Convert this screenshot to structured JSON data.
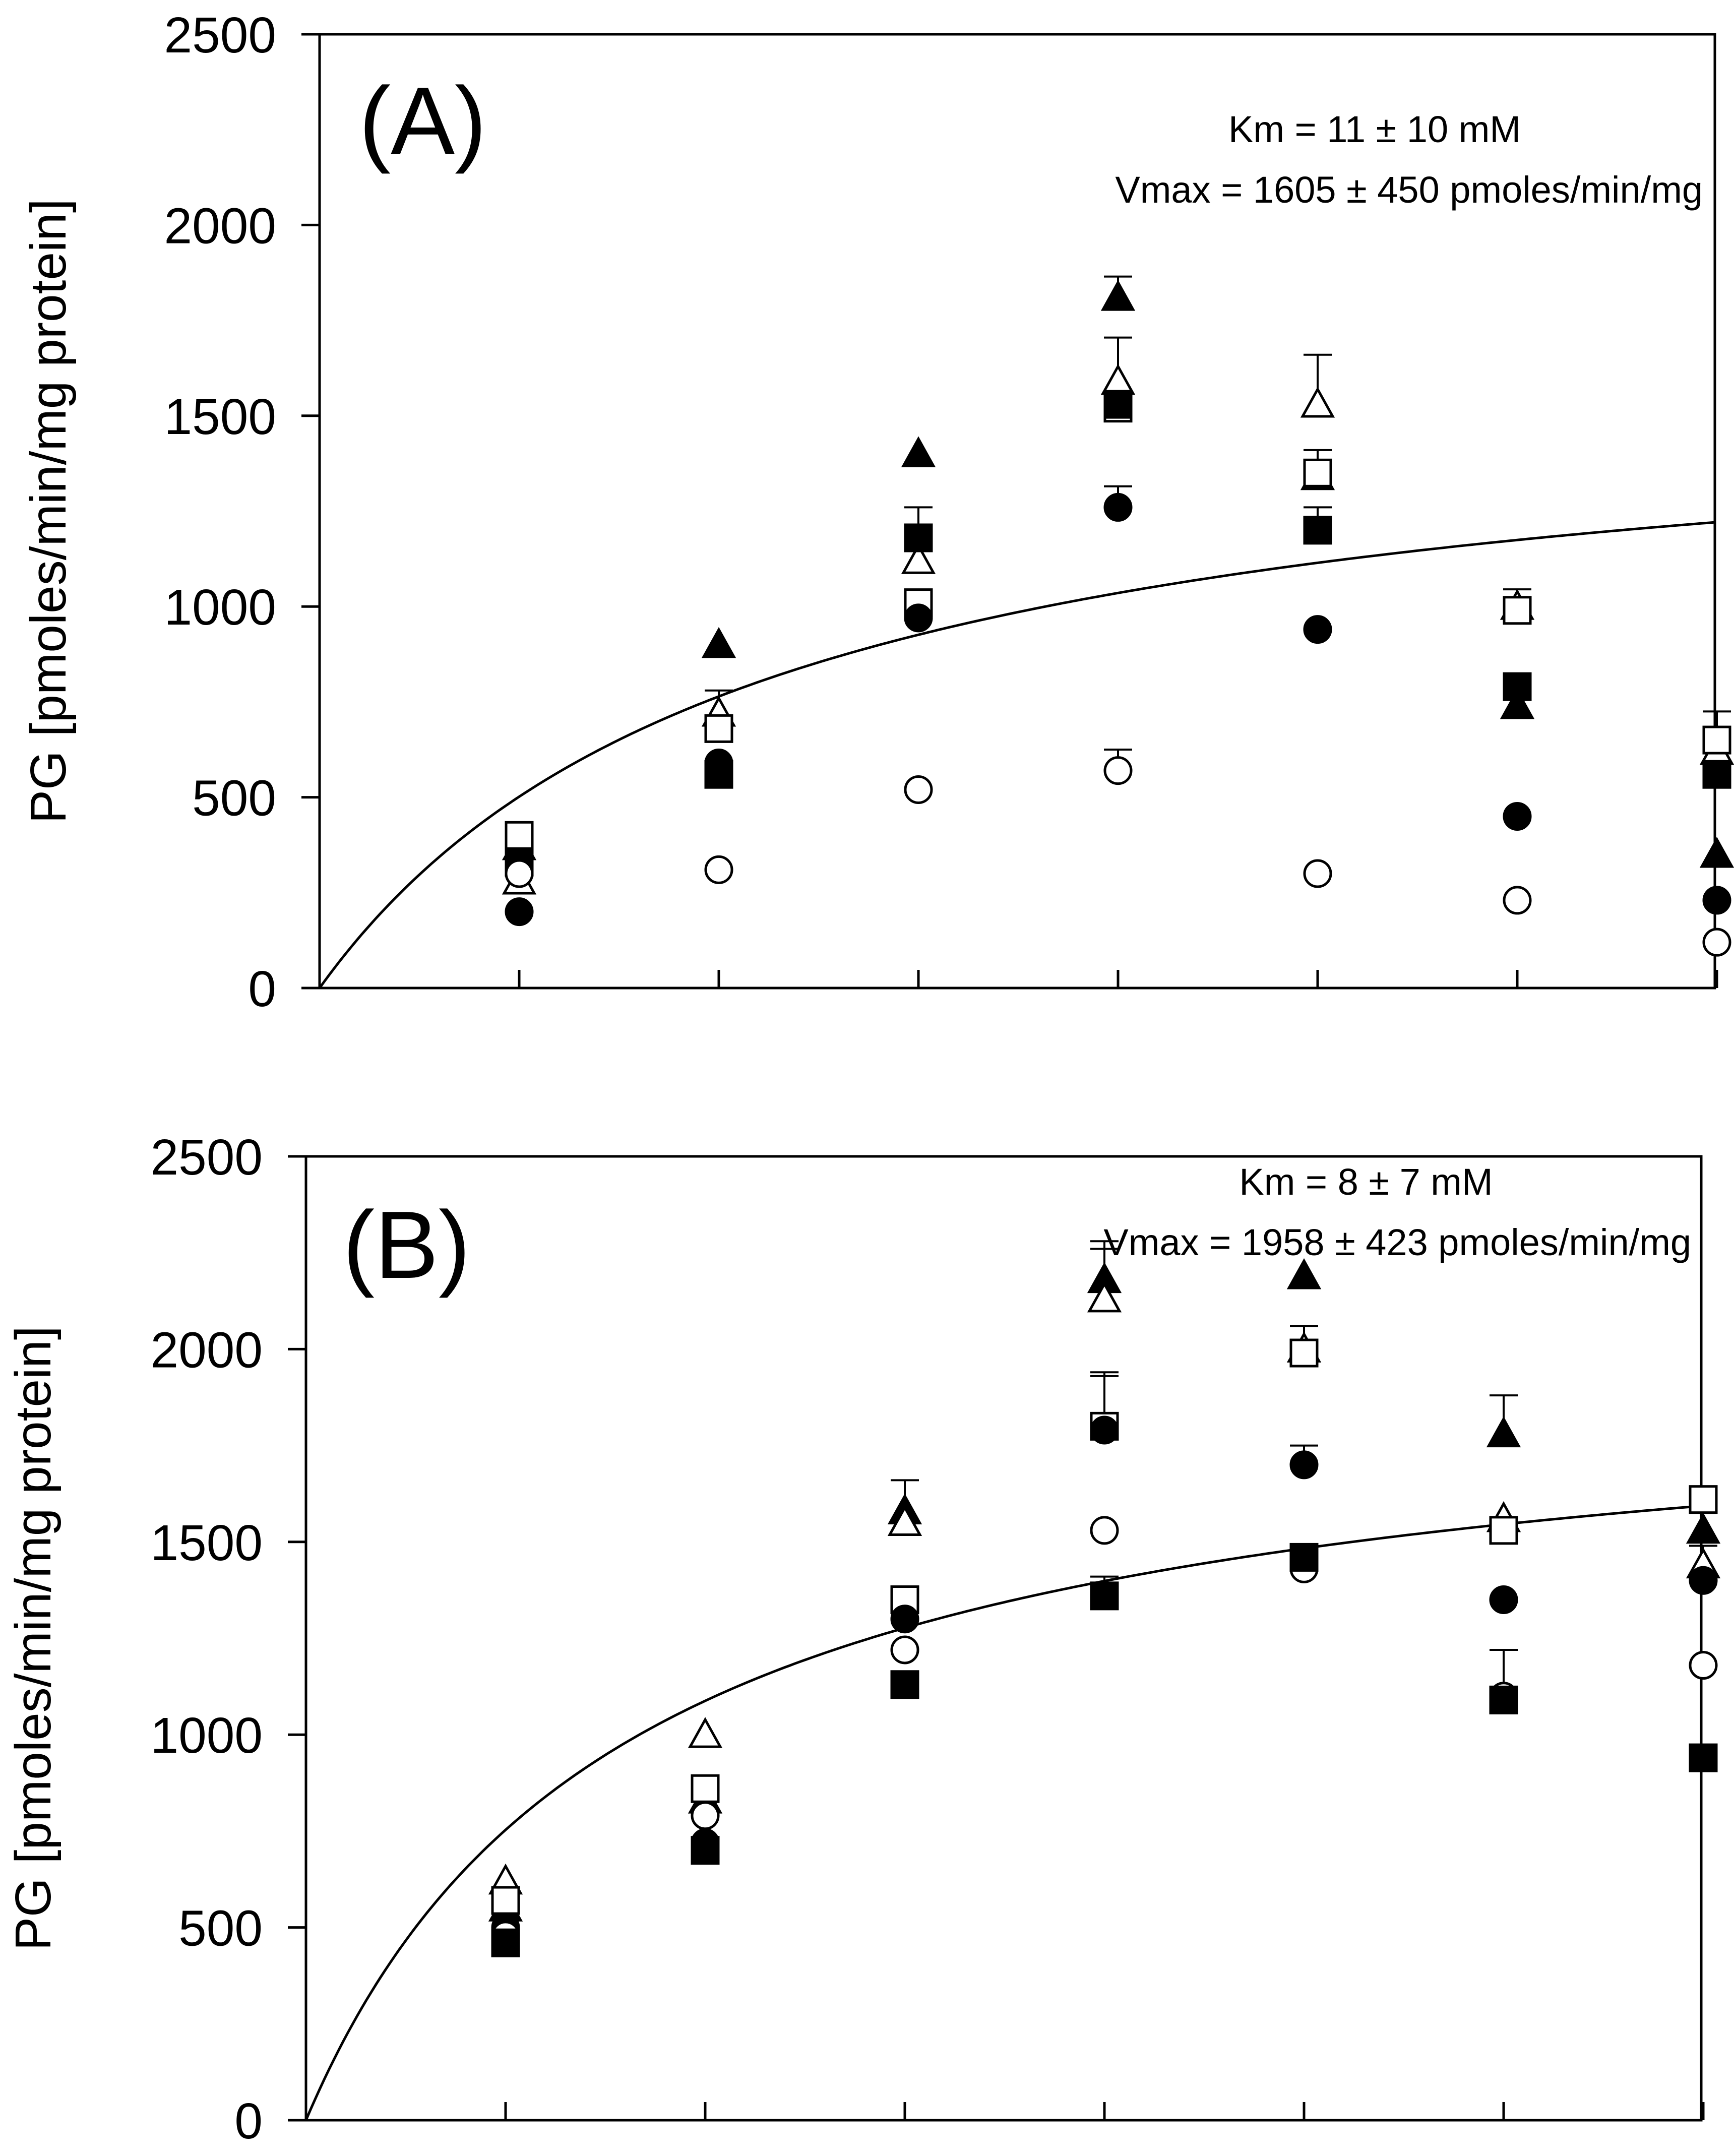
{
  "chart_data": [
    {
      "type": "scatter",
      "panel_label": "(A)",
      "ylabel": "PG [pmoles/min/mg protein]",
      "xlabel": "",
      "ylim": [
        0,
        2500
      ],
      "y_ticks": [
        "0",
        "500",
        "1000",
        "1500",
        "2000",
        "2500"
      ],
      "x_positions": [
        1,
        2,
        3,
        4,
        5,
        6,
        7
      ],
      "annotations": [
        "Km = 11 ± 10 mM",
        "Vmax = 1605 ± 450 pmoles/min/mg"
      ],
      "fit": {
        "type": "michaelis-menten",
        "vmax": 1605,
        "km": 11
      },
      "series": [
        {
          "name": "filled-triangle",
          "marker": "triangle",
          "filled": true,
          "values": [
            370,
            900,
            1400,
            1810,
            1340,
            740,
            350
          ],
          "errors": [
            0,
            0,
            0,
            55,
            0,
            0,
            0
          ]
        },
        {
          "name": "open-triangle",
          "marker": "triangle",
          "filled": false,
          "values": [
            280,
            720,
            1120,
            1590,
            1530,
            1000,
            620
          ],
          "errors": [
            0,
            60,
            0,
            115,
            130,
            0,
            0
          ]
        },
        {
          "name": "open-square",
          "marker": "square",
          "filled": false,
          "values": [
            400,
            680,
            1010,
            1520,
            1350,
            990,
            650
          ],
          "errors": [
            0,
            0,
            0,
            0,
            60,
            55,
            75
          ]
        },
        {
          "name": "filled-square",
          "marker": "square",
          "filled": true,
          "values": [
            330,
            560,
            1180,
            1530,
            1200,
            790,
            560
          ],
          "errors": [
            0,
            0,
            80,
            0,
            60,
            0,
            0
          ]
        },
        {
          "name": "filled-circle",
          "marker": "circle",
          "filled": true,
          "values": [
            200,
            590,
            970,
            1260,
            940,
            450,
            230
          ],
          "errors": [
            0,
            0,
            0,
            55,
            0,
            0,
            0
          ]
        },
        {
          "name": "open-circle",
          "marker": "circle",
          "filled": false,
          "values": [
            300,
            310,
            520,
            570,
            300,
            230,
            120
          ],
          "errors": [
            0,
            0,
            0,
            55,
            0,
            0,
            0
          ]
        }
      ]
    },
    {
      "type": "scatter",
      "panel_label": "(B)",
      "ylabel": "PG [pmoles/min/mg protein]",
      "xlabel": "",
      "ylim": [
        0,
        2500
      ],
      "y_ticks": [
        "0",
        "500",
        "1000",
        "1500",
        "2000",
        "2500"
      ],
      "x_positions": [
        1,
        2,
        3,
        4,
        5,
        6,
        7
      ],
      "annotations": [
        "Km = 8 ± 7 mM",
        "Vmax = 1958 ± 423 pmoles/min/mg"
      ],
      "fit": {
        "type": "michaelis-menten",
        "vmax": 1958,
        "km": 8
      },
      "series": [
        {
          "name": "filled-triangle",
          "marker": "triangle",
          "filled": true,
          "values": [
            550,
            830,
            1580,
            2180,
            2190,
            1780,
            1530
          ],
          "errors": [
            0,
            0,
            80,
            100,
            0,
            100,
            0
          ]
        },
        {
          "name": "open-triangle",
          "marker": "triangle",
          "filled": false,
          "values": [
            620,
            1000,
            1550,
            2130,
            2000,
            1560,
            1440
          ],
          "errors": [
            0,
            0,
            0,
            130,
            60,
            0,
            50
          ]
        },
        {
          "name": "open-square",
          "marker": "square",
          "filled": false,
          "values": [
            570,
            860,
            1350,
            1800,
            1990,
            1530,
            1610
          ],
          "errors": [
            0,
            0,
            0,
            130,
            0,
            0,
            0
          ]
        },
        {
          "name": "filled-circle",
          "marker": "circle",
          "filled": true,
          "values": [
            500,
            720,
            1300,
            1790,
            1700,
            1350,
            1400
          ],
          "errors": [
            0,
            0,
            0,
            150,
            50,
            0,
            0
          ]
        },
        {
          "name": "open-circle",
          "marker": "circle",
          "filled": false,
          "values": [
            480,
            790,
            1220,
            1530,
            1430,
            1100,
            1180
          ],
          "errors": [
            0,
            0,
            0,
            0,
            0,
            0,
            0
          ]
        },
        {
          "name": "filled-square",
          "marker": "square",
          "filled": true,
          "values": [
            460,
            700,
            1130,
            1360,
            1460,
            1090,
            940
          ],
          "errors": [
            0,
            0,
            0,
            50,
            0,
            130,
            0
          ]
        }
      ]
    }
  ]
}
